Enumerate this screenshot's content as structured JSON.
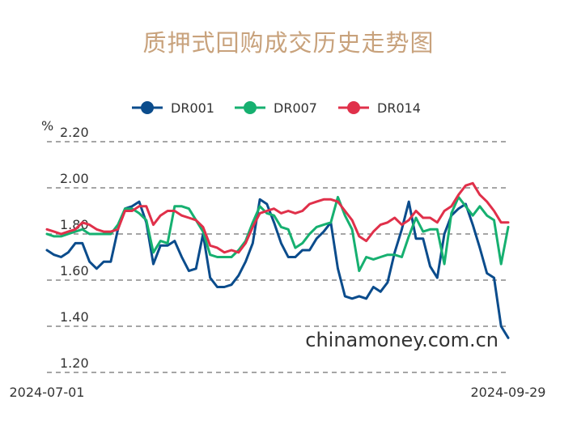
{
  "chart_data": {
    "type": "line",
    "title": "质押式回购成交历史走势图",
    "y_unit": "%",
    "xlabel": "",
    "ylabel": "",
    "ylim": [
      1.2,
      2.2
    ],
    "y_ticks": [
      "2.20",
      "2.00",
      "1.80",
      "1.60",
      "1.40",
      "1.20"
    ],
    "x_tick_labels": [
      "2024-07-01",
      "2024-09-29"
    ],
    "x_range": [
      "2024-07-01",
      "2024-09-29"
    ],
    "grid": true,
    "legend_position": "top",
    "watermark": "chinamoney.com.cn",
    "series": [
      {
        "name": "DR001",
        "color": "#0b4c8c",
        "values": [
          1.73,
          1.71,
          1.7,
          1.72,
          1.76,
          1.76,
          1.68,
          1.65,
          1.68,
          1.68,
          1.82,
          1.91,
          1.92,
          1.94,
          1.85,
          1.67,
          1.75,
          1.75,
          1.77,
          1.7,
          1.64,
          1.65,
          1.8,
          1.61,
          1.57,
          1.57,
          1.58,
          1.62,
          1.68,
          1.76,
          1.95,
          1.93,
          1.85,
          1.76,
          1.7,
          1.7,
          1.73,
          1.73,
          1.78,
          1.81,
          1.85,
          1.65,
          1.53,
          1.52,
          1.53,
          1.52,
          1.57,
          1.55,
          1.59,
          1.72,
          1.82,
          1.94,
          1.78,
          1.78,
          1.66,
          1.61,
          1.8,
          1.88,
          1.91,
          1.93,
          1.84,
          1.74,
          1.63,
          1.61,
          1.4,
          1.35
        ]
      },
      {
        "name": "DR007",
        "color": "#16b070",
        "values": [
          1.8,
          1.79,
          1.79,
          1.8,
          1.81,
          1.82,
          1.8,
          1.8,
          1.8,
          1.8,
          1.84,
          1.91,
          1.91,
          1.89,
          1.86,
          1.72,
          1.77,
          1.76,
          1.92,
          1.92,
          1.91,
          1.86,
          1.81,
          1.71,
          1.7,
          1.7,
          1.7,
          1.73,
          1.77,
          1.85,
          1.92,
          1.89,
          1.88,
          1.83,
          1.82,
          1.74,
          1.76,
          1.8,
          1.83,
          1.84,
          1.85,
          1.96,
          1.88,
          1.82,
          1.64,
          1.7,
          1.69,
          1.7,
          1.71,
          1.71,
          1.7,
          1.79,
          1.87,
          1.81,
          1.82,
          1.82,
          1.67,
          1.89,
          1.96,
          1.92,
          1.88,
          1.92,
          1.88,
          1.86,
          1.67,
          1.83
        ]
      },
      {
        "name": "DR014",
        "color": "#e0304a",
        "values": [
          1.82,
          1.81,
          1.8,
          1.81,
          1.82,
          1.85,
          1.84,
          1.82,
          1.81,
          1.81,
          1.82,
          1.9,
          1.9,
          1.92,
          1.92,
          1.84,
          1.88,
          1.9,
          1.9,
          1.88,
          1.87,
          1.86,
          1.83,
          1.75,
          1.74,
          1.72,
          1.73,
          1.72,
          1.76,
          1.83,
          1.89,
          1.9,
          1.91,
          1.89,
          1.9,
          1.89,
          1.9,
          1.93,
          1.94,
          1.95,
          1.95,
          1.94,
          1.9,
          1.86,
          1.79,
          1.77,
          1.81,
          1.84,
          1.85,
          1.87,
          1.84,
          1.86,
          1.9,
          1.87,
          1.87,
          1.85,
          1.9,
          1.92,
          1.97,
          2.01,
          2.02,
          1.97,
          1.94,
          1.9,
          1.85,
          1.85
        ]
      }
    ]
  }
}
